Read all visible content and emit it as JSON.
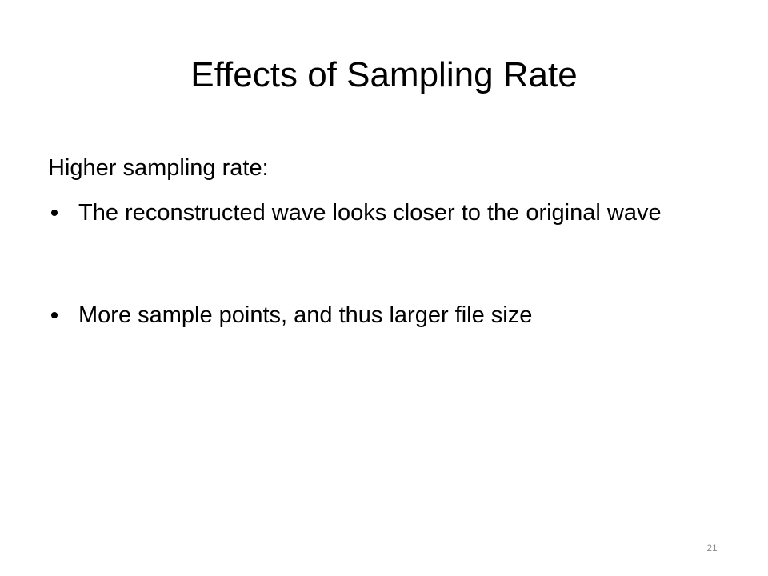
{
  "header": {
    "title": "Effects of Sampling Rate"
  },
  "body": {
    "intro": "Higher sampling rate:",
    "bullets": [
      "The reconstructed wave looks closer to the original wave",
      "More sample points, and thus larger file size"
    ]
  },
  "footer": {
    "slide_number": "21"
  }
}
